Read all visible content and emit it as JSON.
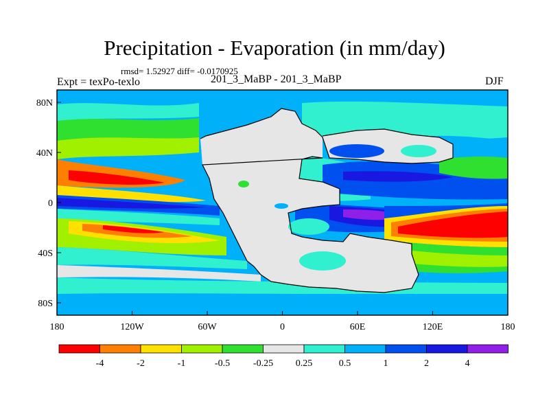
{
  "title": "Precipitation - Evaporation (in mm/day)",
  "stats_line": "rmsd= 1.52927 diff= -0.0170925",
  "experiment_label": "Expt = texPo-texlo",
  "case_label": "201_3_MaBP - 201_3_MaBP",
  "season": "DJF",
  "colors": {
    "frame": "#000000",
    "coast": "#000000",
    "background": "#ffffff"
  },
  "axes": {
    "x_ticks": [
      "180",
      "120W",
      "60W",
      "0",
      "60E",
      "120E",
      "180"
    ],
    "y_ticks": [
      "80N",
      "40N",
      "0",
      "40S",
      "80S"
    ]
  },
  "colorbar": {
    "labels": [
      "-4",
      "-2",
      "-1",
      "-0.5",
      "-0.25",
      "0.25",
      "0.5",
      "1",
      "2",
      "4"
    ],
    "colors": [
      "#ff0000",
      "#ff8000",
      "#ffe000",
      "#a0f000",
      "#30e030",
      "#e6e6e6",
      "#30f0d0",
      "#00b0f8",
      "#0050f0",
      "#1818e0",
      "#9020e8"
    ]
  }
}
